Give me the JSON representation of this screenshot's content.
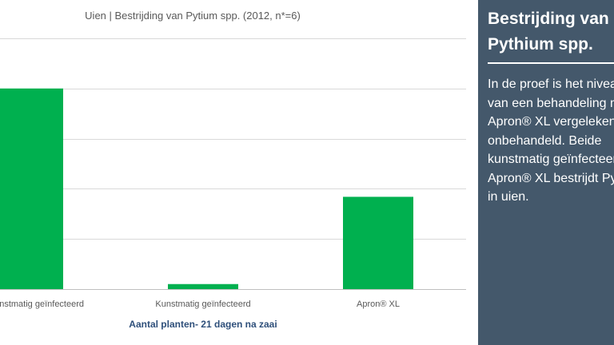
{
  "chart_data": {
    "type": "bar",
    "title": "Uien | Bestrijding van Pytium spp. (2012, n*=6)",
    "categories": [
      "Niet kunstmatig geïnfecteerd",
      "Kunstmatig geïnfecteerd",
      "Apron® XL"
    ],
    "values": [
      100,
      2.5,
      46
    ],
    "xlabel": "Aantal planten- 21 dagen na zaai",
    "ylabel": "",
    "ylim": [
      0,
      125
    ],
    "grid": true,
    "bar_color": "#00b04f"
  },
  "side_panel": {
    "title_lines": [
      "Bestrijding van",
      "Pythium spp."
    ],
    "body_lines": [
      "In de proef is het niveau",
      "van een behandeling met",
      "Apron® XL vergeleken met",
      "onbehandeld. Beide",
      "kunstmatig geïnfecteerd.",
      "Apron® XL bestrijdt Pythium",
      "in uien."
    ],
    "background": "#44586b",
    "text_color": "#ffffff"
  }
}
